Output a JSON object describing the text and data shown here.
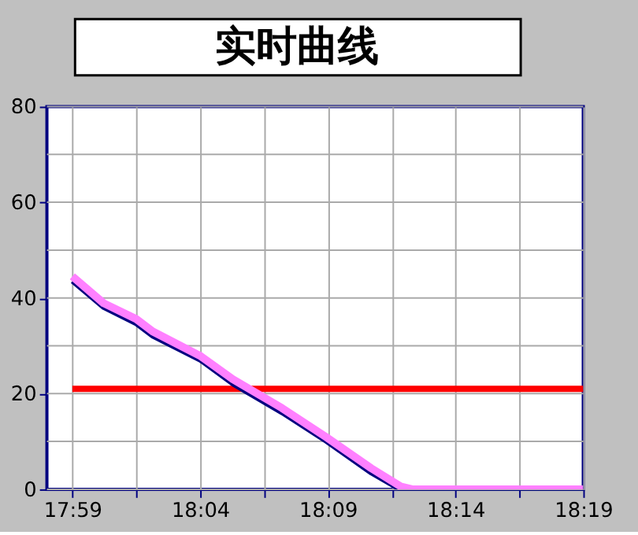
{
  "chart_data": {
    "type": "line",
    "title": "实时曲线",
    "xlim": [
      17.9667,
      18.3167
    ],
    "ylim": [
      0,
      80
    ],
    "xticks": [
      {
        "value": 17.9833,
        "label": "17:59"
      },
      {
        "value": 18.025,
        "label": null
      },
      {
        "value": 18.0667,
        "label": "18:04"
      },
      {
        "value": 18.1083,
        "label": null
      },
      {
        "value": 18.15,
        "label": "18:09"
      },
      {
        "value": 18.1917,
        "label": null
      },
      {
        "value": 18.2333,
        "label": "18:14"
      },
      {
        "value": 18.275,
        "label": null
      },
      {
        "value": 18.3167,
        "label": "18:19"
      }
    ],
    "yticks": [
      0,
      {
        "value": 10,
        "label": null
      },
      20,
      {
        "value": 30,
        "label": null
      },
      40,
      {
        "value": 50,
        "label": null
      },
      60,
      {
        "value": 70,
        "label": null
      },
      80
    ],
    "grid": true,
    "marker": "none",
    "line_style": "solid",
    "series": [
      {
        "color": "#ff0000",
        "x": [
          17.9833,
          18.3167
        ],
        "values": [
          21,
          21
        ]
      },
      {
        "color": "#000080",
        "x": [
          17.9833,
          18.0037,
          18.025,
          18.0357,
          18.0667,
          18.088,
          18.12,
          18.149,
          18.1783,
          18.1967,
          18.3167
        ],
        "values": [
          43.5,
          38,
          34.6,
          32,
          27,
          22,
          16,
          10,
          3.4,
          0,
          0
        ]
      },
      {
        "color": "#ff80ff",
        "x": [
          17.9833,
          18.0037,
          18.025,
          18.0357,
          18.0667,
          18.088,
          18.12,
          18.149,
          18.1783,
          18.1975,
          18.205,
          18.3167
        ],
        "values": [
          44.5,
          38.9,
          35.6,
          33,
          27.9,
          23,
          17,
          10.9,
          4.4,
          0.6,
          0,
          0
        ]
      }
    ]
  }
}
